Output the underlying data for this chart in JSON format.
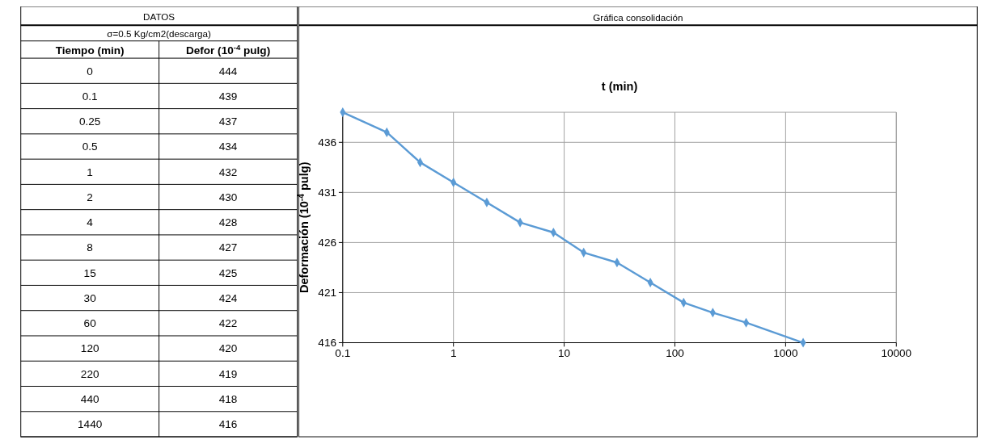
{
  "chart_data": [
    {
      "type": "other",
      "title": "DATOS",
      "subtitle": "σ=0.5 Kg/cm2(descarga)",
      "xlabel": "Tiempo (min)",
      "ylabel": "Defor (10$^{-4}$ pulg)",
      "categories": [
        "0",
        "0.1",
        "0.25",
        "0.5",
        "1",
        "2",
        "4",
        "8",
        "15",
        "30",
        "60",
        "120",
        "220",
        "440",
        "1440"
      ],
      "values": [
        444,
        439,
        437,
        434,
        432,
        430,
        428,
        427,
        425,
        424,
        422,
        420,
        419,
        418,
        416
      ],
      "data_labels": true
    },
    {
      "type": "line",
      "title": "Gráfica consolidación",
      "xlabel": "t (min)",
      "ylabel": "Deformación (10$^{-4}$ pulg)",
      "x": [
        0.1,
        0.25,
        0.5,
        1,
        2,
        4,
        8,
        15,
        30,
        60,
        120,
        220,
        440,
        1440
      ],
      "series": [
        {
          "color": "#5b9bd5",
          "values": [
            439,
            437,
            434,
            432,
            430,
            428,
            427,
            425,
            424,
            422,
            420,
            419,
            418,
            416
          ]
        }
      ],
      "log": "x",
      "xlim": [
        0.1,
        10000
      ],
      "xticks": [
        0.1,
        1,
        10,
        100,
        1000,
        10000
      ],
      "ylim": [
        416,
        439
      ],
      "yticks": [
        416,
        421,
        426,
        431,
        436
      ],
      "grid": true,
      "marker": "diamond",
      "line_style": "solid"
    }
  ]
}
